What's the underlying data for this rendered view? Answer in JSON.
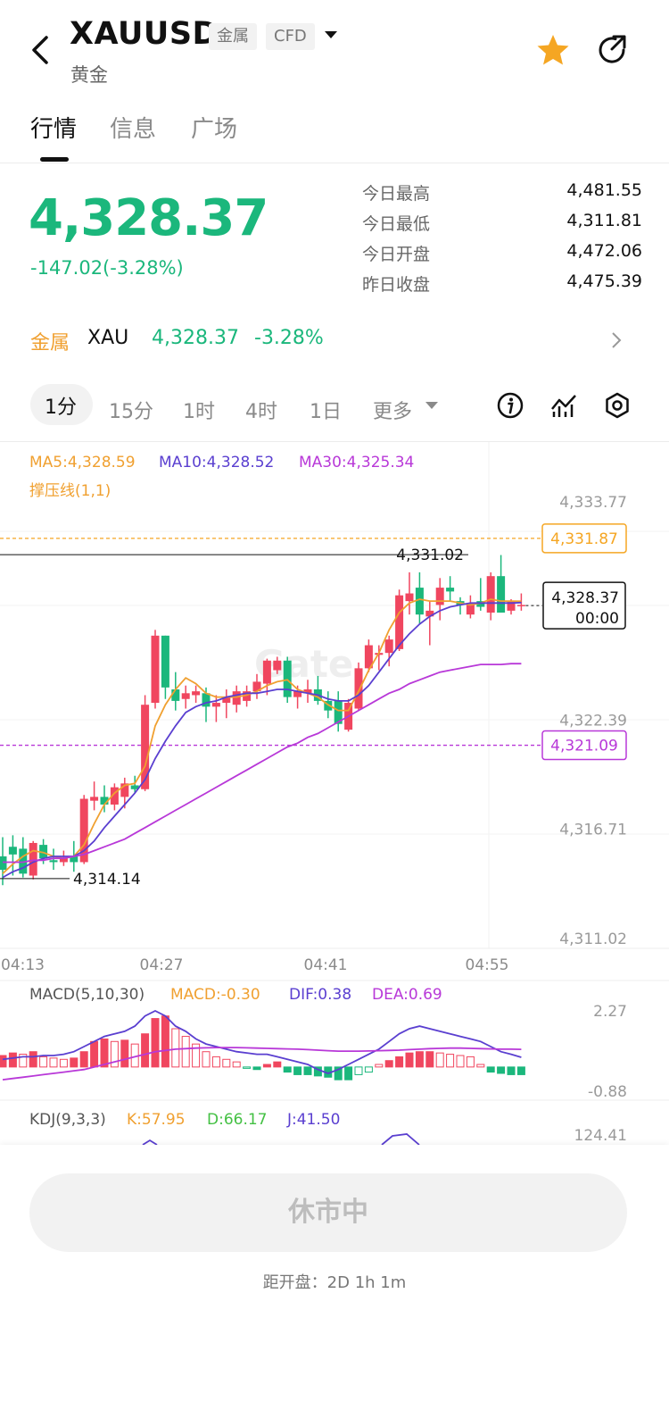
{
  "header": {
    "symbol": "XAUUSD",
    "tag_metal": "金属",
    "tag_cfd": "CFD",
    "subtitle": "黄金"
  },
  "tabs": [
    "行情",
    "信息",
    "广场"
  ],
  "quote": {
    "price": "4,328.37",
    "change": "-147.02(-3.28%)",
    "stats": [
      {
        "label": "今日最高",
        "value": "4,481.55"
      },
      {
        "label": "今日最低",
        "value": "4,311.81"
      },
      {
        "label": "今日开盘",
        "value": "4,472.06"
      },
      {
        "label": "昨日收盘",
        "value": "4,475.39"
      }
    ]
  },
  "related": {
    "category": "金属",
    "symbol": "XAU",
    "price": "4,328.37",
    "change": "-3.28%"
  },
  "timeframes": [
    "1分",
    "15分",
    "1时",
    "4时",
    "1日",
    "更多"
  ],
  "ma_legend": {
    "ma5": "MA5:4,328.59",
    "ma10": "MA10:4,328.52",
    "ma30": "MA30:4,325.34",
    "support": "撑压线(1,1)"
  },
  "price_axis": [
    "4,333.77",
    "4,322.39",
    "4,316.71",
    "4,311.02"
  ],
  "marks": {
    "high_label": "4,331.02",
    "low_label": "4,314.14",
    "upper_line": "4,331.87",
    "lower_line": "4,321.09",
    "current_price": "4,328.37",
    "current_time": "00:00"
  },
  "time_axis": [
    "04:13",
    "04:27",
    "04:41",
    "04:55"
  ],
  "macd": {
    "title": "MACD(5,10,30)",
    "macd": "MACD:-0.30",
    "dif": "DIF:0.38",
    "dea": "DEA:0.69",
    "axis_top": "2.27",
    "axis_bottom": "-0.88"
  },
  "kdj": {
    "title": "KDJ(9,3,3)",
    "k": "K:57.95",
    "d": "D:66.17",
    "j": "J:41.50",
    "axis_top": "124.41"
  },
  "footer": {
    "status_button": "休市中",
    "countdown": "距开盘：2D 1h 1m"
  },
  "colors": {
    "up": "#f0465f",
    "down": "#1bb77c",
    "accent": "#f5a623",
    "ma5": "#f0a030",
    "ma10": "#5a3fd0",
    "ma30": "#b838d8"
  },
  "chart_data": {
    "type": "candlestick",
    "interval": "1分",
    "ylim": [
      4311.02,
      4333.77
    ],
    "yticks": [
      4333.77,
      4322.39,
      4316.71,
      4311.02
    ],
    "xticks": [
      "04:13",
      "04:27",
      "04:41",
      "04:55"
    ],
    "high": 4331.02,
    "low": 4314.14,
    "price_lines": [
      4331.87,
      4321.09
    ],
    "last": 4328.37,
    "candles": [
      {
        "o": 4315.3,
        "h": 4316.3,
        "l": 4313.8,
        "c": 4314.6
      },
      {
        "o": 4315.8,
        "h": 4316.4,
        "l": 4314.3,
        "c": 4315.4
      },
      {
        "o": 4315.7,
        "h": 4316.3,
        "l": 4314.2,
        "c": 4314.4
      },
      {
        "o": 4314.3,
        "h": 4316.1,
        "l": 4314.1,
        "c": 4316.0
      },
      {
        "o": 4315.9,
        "h": 4316.2,
        "l": 4314.9,
        "c": 4315.2
      },
      {
        "o": 4315.1,
        "h": 4315.7,
        "l": 4314.6,
        "c": 4315.0
      },
      {
        "o": 4315.0,
        "h": 4315.6,
        "l": 4314.8,
        "c": 4315.2
      },
      {
        "o": 4315.3,
        "h": 4316.1,
        "l": 4314.5,
        "c": 4315.0
      },
      {
        "o": 4315.0,
        "h": 4318.5,
        "l": 4314.9,
        "c": 4318.3
      },
      {
        "o": 4318.2,
        "h": 4319.2,
        "l": 4317.7,
        "c": 4318.4
      },
      {
        "o": 4318.4,
        "h": 4319.0,
        "l": 4317.6,
        "c": 4318.0
      },
      {
        "o": 4318.0,
        "h": 4319.1,
        "l": 4317.7,
        "c": 4318.9
      },
      {
        "o": 4318.4,
        "h": 4319.4,
        "l": 4317.8,
        "c": 4319.1
      },
      {
        "o": 4319.0,
        "h": 4319.5,
        "l": 4318.6,
        "c": 4318.8
      },
      {
        "o": 4318.8,
        "h": 4323.7,
        "l": 4318.7,
        "c": 4323.2
      },
      {
        "o": 4323.3,
        "h": 4327.1,
        "l": 4323.0,
        "c": 4326.8
      },
      {
        "o": 4326.8,
        "h": 4326.8,
        "l": 4323.5,
        "c": 4324.1
      },
      {
        "o": 4324.0,
        "h": 4324.9,
        "l": 4322.9,
        "c": 4323.4
      },
      {
        "o": 4323.5,
        "h": 4324.2,
        "l": 4323.0,
        "c": 4323.8
      },
      {
        "o": 4323.7,
        "h": 4324.2,
        "l": 4323.3,
        "c": 4323.9
      },
      {
        "o": 4323.8,
        "h": 4324.1,
        "l": 4322.3,
        "c": 4323.1
      },
      {
        "o": 4323.1,
        "h": 4323.7,
        "l": 4322.3,
        "c": 4323.3
      },
      {
        "o": 4323.3,
        "h": 4324.0,
        "l": 4322.5,
        "c": 4323.6
      },
      {
        "o": 4323.2,
        "h": 4324.2,
        "l": 4322.8,
        "c": 4323.9
      },
      {
        "o": 4323.4,
        "h": 4324.2,
        "l": 4323.1,
        "c": 4323.9
      },
      {
        "o": 4323.9,
        "h": 4324.8,
        "l": 4323.5,
        "c": 4324.4
      },
      {
        "o": 4324.3,
        "h": 4325.6,
        "l": 4323.7,
        "c": 4325.5
      },
      {
        "o": 4325.0,
        "h": 4325.7,
        "l": 4324.8,
        "c": 4325.5
      },
      {
        "o": 4325.5,
        "h": 4325.7,
        "l": 4323.3,
        "c": 4323.6
      },
      {
        "o": 4323.6,
        "h": 4324.2,
        "l": 4323.0,
        "c": 4323.9
      },
      {
        "o": 4323.8,
        "h": 4324.5,
        "l": 4323.3,
        "c": 4324.0
      },
      {
        "o": 4324.0,
        "h": 4324.7,
        "l": 4323.2,
        "c": 4323.4
      },
      {
        "o": 4323.4,
        "h": 4323.9,
        "l": 4322.5,
        "c": 4322.9
      },
      {
        "o": 4323.4,
        "h": 4323.9,
        "l": 4321.8,
        "c": 4322.2
      },
      {
        "o": 4321.9,
        "h": 4323.5,
        "l": 4321.8,
        "c": 4323.3
      },
      {
        "o": 4323.0,
        "h": 4325.4,
        "l": 4322.9,
        "c": 4325.1
      },
      {
        "o": 4325.1,
        "h": 4326.6,
        "l": 4324.9,
        "c": 4326.3
      },
      {
        "o": 4325.8,
        "h": 4326.3,
        "l": 4325.0,
        "c": 4325.9
      },
      {
        "o": 4325.9,
        "h": 4326.8,
        "l": 4325.2,
        "c": 4326.6
      },
      {
        "o": 4326.1,
        "h": 4329.2,
        "l": 4326.0,
        "c": 4328.9
      },
      {
        "o": 4328.6,
        "h": 4330.1,
        "l": 4327.9,
        "c": 4329.0
      },
      {
        "o": 4329.3,
        "h": 4330.1,
        "l": 4327.4,
        "c": 4327.9
      },
      {
        "o": 4327.8,
        "h": 4328.6,
        "l": 4326.3,
        "c": 4328.1
      },
      {
        "o": 4328.4,
        "h": 4329.8,
        "l": 4327.6,
        "c": 4329.3
      },
      {
        "o": 4329.3,
        "h": 4329.9,
        "l": 4328.6,
        "c": 4329.1
      },
      {
        "o": 4328.6,
        "h": 4328.8,
        "l": 4327.9,
        "c": 4328.4
      },
      {
        "o": 4327.9,
        "h": 4328.9,
        "l": 4327.7,
        "c": 4328.5
      },
      {
        "o": 4328.6,
        "h": 4329.8,
        "l": 4328.1,
        "c": 4328.3
      },
      {
        "o": 4328.0,
        "h": 4330.1,
        "l": 4327.6,
        "c": 4329.9
      },
      {
        "o": 4329.9,
        "h": 4331.0,
        "l": 4328.0,
        "c": 4328.0
      },
      {
        "o": 4328.1,
        "h": 4328.7,
        "l": 4327.9,
        "c": 4328.6
      },
      {
        "o": 4328.4,
        "h": 4329.0,
        "l": 4328.1,
        "c": 4328.4
      }
    ],
    "series": [
      {
        "name": "MA5",
        "values": [
          4314.4,
          4314.9,
          4315.3,
          4315.6,
          4315.5,
          4315.3,
          4315.2,
          4315.3,
          4315.9,
          4317.0,
          4318.0,
          4318.6,
          4319.0,
          4319.1,
          4320.0,
          4322.1,
          4323.2,
          4324.0,
          4324.6,
          4324.3,
          4323.8,
          4323.6,
          4323.6,
          4323.6,
          4323.7,
          4323.9,
          4324.2,
          4324.4,
          4324.5,
          4324.0,
          4323.8,
          4323.6,
          4323.2,
          4322.9,
          4322.9,
          4323.9,
          4325.0,
          4325.9,
          4327.1,
          4328.0,
          4328.5,
          4328.7,
          4328.6,
          4328.6,
          4328.6,
          4328.5,
          4328.4,
          4328.5,
          4328.7,
          4328.6,
          4328.6,
          4328.59
        ]
      },
      {
        "name": "MA10",
        "values": [
          4314.2,
          4314.5,
          4314.7,
          4315.0,
          4315.2,
          4315.3,
          4315.3,
          4315.3,
          4315.6,
          4316.1,
          4316.8,
          4317.4,
          4318.0,
          4318.6,
          4319.3,
          4320.4,
          4321.3,
          4322.1,
          4322.8,
          4323.1,
          4323.3,
          4323.4,
          4323.6,
          4323.7,
          4323.8,
          4323.8,
          4323.9,
          4324.0,
          4324.0,
          4323.9,
          4323.8,
          4323.7,
          4323.5,
          4323.4,
          4323.4,
          4323.7,
          4324.2,
          4324.9,
          4325.6,
          4326.3,
          4326.9,
          4327.4,
          4327.8,
          4328.1,
          4328.3,
          4328.4,
          4328.5,
          4328.5,
          4328.5,
          4328.5,
          4328.5,
          4328.52
        ]
      },
      {
        "name": "MA30",
        "values": [
          4315.0,
          4315.0,
          4315.0,
          4315.1,
          4315.1,
          4315.2,
          4315.2,
          4315.3,
          4315.4,
          4315.6,
          4315.8,
          4316.0,
          4316.2,
          4316.5,
          4316.8,
          4317.1,
          4317.4,
          4317.7,
          4318.0,
          4318.3,
          4318.6,
          4318.9,
          4319.2,
          4319.5,
          4319.8,
          4320.1,
          4320.4,
          4320.7,
          4321.0,
          4321.2,
          4321.5,
          4321.7,
          4322.0,
          4322.3,
          4322.6,
          4322.9,
          4323.2,
          4323.5,
          4323.8,
          4324.0,
          4324.3,
          4324.5,
          4324.7,
          4324.9,
          4325.0,
          4325.1,
          4325.2,
          4325.3,
          4325.3,
          4325.3,
          4325.34,
          4325.34
        ]
      }
    ],
    "macd_hist": [
      0.45,
      0.55,
      0.5,
      0.6,
      0.4,
      0.35,
      0.3,
      0.35,
      0.6,
      1.0,
      1.1,
      1.0,
      1.05,
      0.9,
      1.3,
      1.9,
      2.0,
      1.5,
      1.2,
      0.9,
      0.6,
      0.4,
      0.3,
      0.2,
      -0.05,
      -0.1,
      0.1,
      0.2,
      -0.2,
      -0.3,
      -0.3,
      -0.35,
      -0.4,
      -0.5,
      -0.5,
      -0.3,
      -0.2,
      0.1,
      0.25,
      0.4,
      0.55,
      0.6,
      0.6,
      0.55,
      0.5,
      0.45,
      0.4,
      0.1,
      -0.2,
      -0.25,
      -0.3,
      -0.3
    ],
    "macd_dif": [
      0.3,
      0.35,
      0.4,
      0.4,
      0.45,
      0.45,
      0.5,
      0.6,
      0.8,
      1.0,
      1.2,
      1.3,
      1.4,
      1.6,
      2.0,
      2.2,
      2.0,
      1.6,
      1.4,
      1.1,
      0.9,
      0.8,
      0.7,
      0.6,
      0.55,
      0.5,
      0.5,
      0.4,
      0.3,
      0.2,
      0.1,
      -0.1,
      -0.25,
      -0.1,
      0.1,
      0.3,
      0.5,
      0.7,
      1.0,
      1.3,
      1.5,
      1.6,
      1.5,
      1.4,
      1.3,
      1.2,
      1.1,
      1.0,
      0.8,
      0.6,
      0.5,
      0.38
    ],
    "macd_dea": [
      -0.5,
      -0.45,
      -0.4,
      -0.35,
      -0.3,
      -0.25,
      -0.2,
      -0.15,
      -0.1,
      0.0,
      0.1,
      0.2,
      0.3,
      0.4,
      0.5,
      0.6,
      0.65,
      0.7,
      0.72,
      0.74,
      0.75,
      0.76,
      0.76,
      0.76,
      0.75,
      0.74,
      0.73,
      0.72,
      0.71,
      0.7,
      0.68,
      0.66,
      0.64,
      0.62,
      0.62,
      0.62,
      0.63,
      0.64,
      0.65,
      0.66,
      0.68,
      0.7,
      0.72,
      0.73,
      0.74,
      0.74,
      0.73,
      0.72,
      0.71,
      0.7,
      0.7,
      0.69
    ]
  }
}
